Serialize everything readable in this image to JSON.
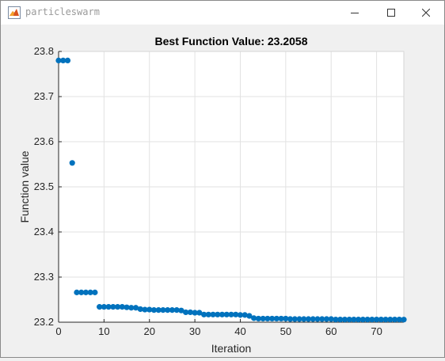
{
  "window": {
    "title": "particleswarm",
    "icon": "matlab-figure-icon",
    "controls": [
      "minimize-icon",
      "maximize-icon",
      "close-icon"
    ]
  },
  "chart_data": {
    "type": "scatter",
    "title": "Best Function Value: 23.2058",
    "xlabel": "Iteration",
    "ylabel": "Function value",
    "xlim": [
      0,
      76
    ],
    "ylim": [
      23.2,
      23.8
    ],
    "xticks": [
      "0",
      "10",
      "20",
      "30",
      "40",
      "50",
      "60",
      "70"
    ],
    "yticks": [
      "23.2",
      "23.3",
      "23.4",
      "23.5",
      "23.6",
      "23.7",
      "23.8"
    ],
    "grid": true,
    "marker_color": "#0072BD",
    "series": [
      {
        "x": [
          0,
          1,
          2,
          3,
          4,
          5,
          6,
          7,
          8,
          9,
          10,
          11,
          12,
          13,
          14,
          15,
          16,
          17,
          18,
          19,
          20,
          21,
          22,
          23,
          24,
          25,
          26,
          27,
          28,
          29,
          30,
          31,
          32,
          33,
          34,
          35,
          36,
          37,
          38,
          39,
          40,
          41,
          42,
          43,
          44,
          45,
          46,
          47,
          48,
          49,
          50,
          51,
          52,
          53,
          54,
          55,
          56,
          57,
          58,
          59,
          60,
          61,
          62,
          63,
          64,
          65,
          66,
          67,
          68,
          69,
          70,
          71,
          72,
          73,
          74,
          75,
          76
        ],
        "y": [
          23.78,
          23.78,
          23.78,
          23.553,
          23.266,
          23.266,
          23.266,
          23.266,
          23.266,
          23.234,
          23.234,
          23.234,
          23.234,
          23.234,
          23.234,
          23.233,
          23.232,
          23.232,
          23.229,
          23.228,
          23.228,
          23.227,
          23.227,
          23.227,
          23.227,
          23.227,
          23.227,
          23.226,
          23.222,
          23.222,
          23.221,
          23.221,
          23.217,
          23.217,
          23.217,
          23.217,
          23.217,
          23.217,
          23.217,
          23.217,
          23.216,
          23.216,
          23.214,
          23.209,
          23.208,
          23.208,
          23.208,
          23.208,
          23.208,
          23.208,
          23.208,
          23.207,
          23.207,
          23.207,
          23.207,
          23.207,
          23.207,
          23.207,
          23.207,
          23.207,
          23.207,
          23.206,
          23.206,
          23.206,
          23.206,
          23.206,
          23.206,
          23.206,
          23.206,
          23.206,
          23.206,
          23.206,
          23.206,
          23.206,
          23.206,
          23.206,
          23.2058
        ]
      }
    ]
  }
}
